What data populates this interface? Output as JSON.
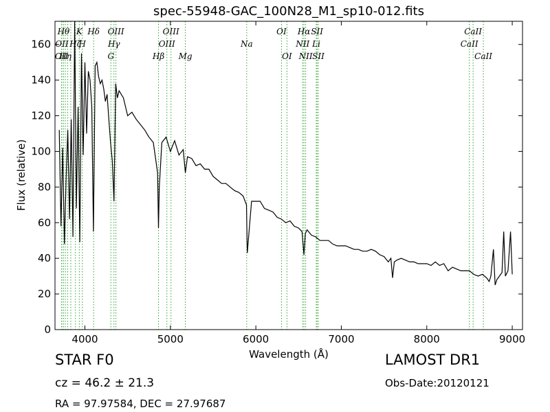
{
  "chart_data": {
    "type": "line",
    "title": "spec-55948-GAC_100N28_M1_sp10-012.fits",
    "xlabel": "Wavelength (Å)",
    "ylabel": "Flux (relative)",
    "xlim": [
      3650,
      9120
    ],
    "ylim": [
      0,
      173
    ],
    "xticks": [
      4000,
      5000,
      6000,
      7000,
      8000,
      9000
    ],
    "xtick_labels": [
      "4000",
      "5000",
      "6000",
      "7000",
      "8000",
      "9000"
    ],
    "yticks": [
      0,
      20,
      40,
      60,
      80,
      100,
      120,
      140,
      160
    ],
    "ytick_labels": [
      "0",
      "20",
      "40",
      "60",
      "80",
      "100",
      "120",
      "140",
      "160"
    ],
    "grid": false,
    "line_color": "#000000",
    "marker_color": "#2ca02c",
    "series": [
      {
        "x": [
          3700,
          3720,
          3740,
          3760,
          3780,
          3800,
          3820,
          3840,
          3860,
          3880,
          3900,
          3920,
          3940,
          3960,
          3980,
          4000,
          4020,
          4040,
          4060,
          4080,
          4100,
          4120,
          4140,
          4160,
          4180,
          4200,
          4220,
          4240,
          4260,
          4280,
          4300,
          4320,
          4340,
          4360,
          4380,
          4400,
          4450,
          4500,
          4550,
          4600,
          4650,
          4700,
          4750,
          4800,
          4850,
          4861,
          4870,
          4900,
          4950,
          5000,
          5050,
          5100,
          5150,
          5175,
          5200,
          5250,
          5300,
          5350,
          5400,
          5450,
          5500,
          5550,
          5600,
          5650,
          5700,
          5750,
          5800,
          5850,
          5890,
          5900,
          5950,
          6000,
          6050,
          6100,
          6150,
          6200,
          6250,
          6300,
          6350,
          6400,
          6450,
          6500,
          6540,
          6563,
          6580,
          6600,
          6650,
          6700,
          6750,
          6800,
          6850,
          6900,
          6950,
          7000,
          7050,
          7100,
          7150,
          7200,
          7250,
          7300,
          7350,
          7400,
          7450,
          7500,
          7550,
          7580,
          7600,
          7620,
          7650,
          7700,
          7750,
          7800,
          7850,
          7900,
          7950,
          8000,
          8050,
          8100,
          8150,
          8200,
          8250,
          8300,
          8350,
          8400,
          8450,
          8500,
          8550,
          8600,
          8650,
          8700,
          8730,
          8750,
          8780,
          8800,
          8820,
          8850,
          8880,
          8900,
          8920,
          8950,
          8980,
          9000
        ],
        "y": [
          112,
          58,
          102,
          48,
          85,
          112,
          62,
          118,
          52,
          173,
          68,
          125,
          49,
          155,
          98,
          150,
          110,
          145,
          140,
          125,
          55,
          148,
          150,
          142,
          138,
          140,
          135,
          128,
          132,
          118,
          105,
          95,
          72,
          138,
          130,
          134,
          130,
          120,
          122,
          118,
          115,
          112,
          108,
          105,
          88,
          57,
          80,
          105,
          108,
          100,
          106,
          98,
          101,
          88,
          97,
          96,
          92,
          93,
          90,
          90,
          86,
          84,
          82,
          82,
          80,
          78,
          77,
          75,
          70,
          43,
          72,
          72,
          72,
          68,
          67,
          66,
          63,
          62,
          60,
          61,
          58,
          57,
          55,
          42,
          54,
          56,
          53,
          52,
          50,
          50,
          50,
          48,
          47,
          47,
          47,
          46,
          45,
          45,
          44,
          44,
          45,
          44,
          42,
          41,
          38,
          40,
          29,
          38,
          39,
          40,
          39,
          38,
          38,
          37,
          37,
          37,
          36,
          38,
          36,
          37,
          33,
          35,
          34,
          33,
          33,
          33,
          31,
          30,
          31,
          29,
          27,
          30,
          45,
          25,
          28,
          30,
          32,
          55,
          30,
          33,
          55,
          31
        ]
      }
    ],
    "line_markers": [
      {
        "wl": 3727,
        "label": "OII",
        "row": 3
      },
      {
        "wl": 3730,
        "label": "OII",
        "row": 2
      },
      {
        "wl": 3750,
        "label": "Hθ",
        "row": 1
      },
      {
        "wl": 3771,
        "label": "Hη",
        "row": 3
      },
      {
        "wl": 3798,
        "label": "",
        "row": 0
      },
      {
        "wl": 3835,
        "label": "",
        "row": 0
      },
      {
        "wl": 3889,
        "label": "Hζ",
        "row": 2
      },
      {
        "wl": 3934,
        "label": "K",
        "row": 1
      },
      {
        "wl": 3970,
        "label": "H",
        "row": 2
      },
      {
        "wl": 4102,
        "label": "Hδ",
        "row": 1
      },
      {
        "wl": 4304,
        "label": "G",
        "row": 3
      },
      {
        "wl": 4340,
        "label": "Hγ",
        "row": 2
      },
      {
        "wl": 4363,
        "label": "OIII",
        "row": 1
      },
      {
        "wl": 4861,
        "label": "Hβ",
        "row": 3
      },
      {
        "wl": 4959,
        "label": "OIII",
        "row": 2
      },
      {
        "wl": 5007,
        "label": "OIII",
        "row": 1
      },
      {
        "wl": 5175,
        "label": "Mg",
        "row": 3
      },
      {
        "wl": 5893,
        "label": "Na",
        "row": 2
      },
      {
        "wl": 6300,
        "label": "OI",
        "row": 1
      },
      {
        "wl": 6364,
        "label": "OI",
        "row": 3
      },
      {
        "wl": 6548,
        "label": "NII",
        "row": 2
      },
      {
        "wl": 6563,
        "label": "Hα",
        "row": 1
      },
      {
        "wl": 6583,
        "label": "NII",
        "row": 3
      },
      {
        "wl": 6707,
        "label": "Li",
        "row": 2
      },
      {
        "wl": 6716,
        "label": "SII",
        "row": 1
      },
      {
        "wl": 6731,
        "label": "SII",
        "row": 3
      },
      {
        "wl": 8498,
        "label": "CaII",
        "row": 2
      },
      {
        "wl": 8542,
        "label": "CaII",
        "row": 1
      },
      {
        "wl": 8662,
        "label": "CaII",
        "row": 3
      }
    ]
  },
  "footer": {
    "class_label": "STAR   F0",
    "survey_label": "LAMOST DR1",
    "cz_label": "cz = 46.2  ± 21.3",
    "obs_date": "Obs-Date:20120121",
    "radec": "RA = 97.97584, DEC = 27.97687"
  }
}
